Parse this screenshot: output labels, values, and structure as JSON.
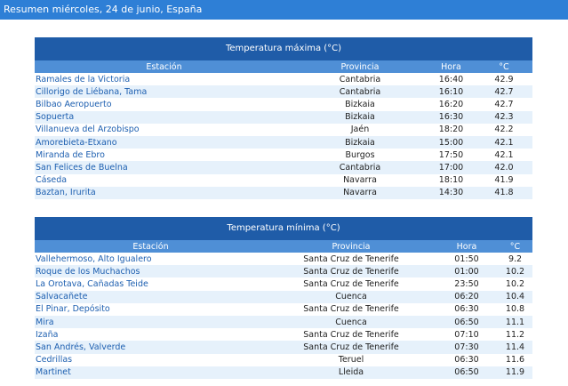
{
  "header": {
    "title": "Resumen miércoles, 24 de junio, España"
  },
  "tables": [
    {
      "title": "Temperatura máxima (°C)",
      "columns": [
        "Estación",
        "Provincia",
        "Hora",
        "°C"
      ],
      "rows": [
        [
          "Ramales de la Victoria",
          "Cantabria",
          "16:40",
          "42.9"
        ],
        [
          "Cillorigo de Liébana, Tama",
          "Cantabria",
          "16:10",
          "42.7"
        ],
        [
          "Bilbao Aeropuerto",
          "Bizkaia",
          "16:20",
          "42.7"
        ],
        [
          "Sopuerta",
          "Bizkaia",
          "16:30",
          "42.3"
        ],
        [
          "Villanueva del Arzobispo",
          "Jaén",
          "18:20",
          "42.2"
        ],
        [
          "Amorebieta-Etxano",
          "Bizkaia",
          "15:00",
          "42.1"
        ],
        [
          "Miranda de Ebro",
          "Burgos",
          "17:50",
          "42.1"
        ],
        [
          "San Felices de Buelna",
          "Cantabria",
          "17:00",
          "42.0"
        ],
        [
          "Cáseda",
          "Navarra",
          "18:10",
          "41.9"
        ],
        [
          "Baztan, Irurita",
          "Navarra",
          "14:30",
          "41.8"
        ]
      ]
    },
    {
      "title": "Temperatura mínima (°C)",
      "columns": [
        "Estación",
        "Provincia",
        "Hora",
        "°C"
      ],
      "rows": [
        [
          "Vallehermoso, Alto Igualero",
          "Santa Cruz de Tenerife",
          "01:50",
          "9.2"
        ],
        [
          "Roque de los Muchachos",
          "Santa Cruz de Tenerife",
          "01:00",
          "10.2"
        ],
        [
          "La Orotava, Cañadas Teide",
          "Santa Cruz de Tenerife",
          "23:50",
          "10.2"
        ],
        [
          "Salvacañete",
          "Cuenca",
          "06:20",
          "10.4"
        ],
        [
          "El Pinar, Depósito",
          "Santa Cruz de Tenerife",
          "06:30",
          "10.8"
        ],
        [
          "Mira",
          "Cuenca",
          "06:50",
          "11.1"
        ],
        [
          "Izaña",
          "Santa Cruz de Tenerife",
          "07:10",
          "11.2"
        ],
        [
          "San Andrés, Valverde",
          "Santa Cruz de Tenerife",
          "07:30",
          "11.4"
        ],
        [
          "Cedrillas",
          "Teruel",
          "06:30",
          "11.6"
        ],
        [
          "Martinet",
          "Lleida",
          "06:50",
          "11.9"
        ]
      ]
    }
  ]
}
